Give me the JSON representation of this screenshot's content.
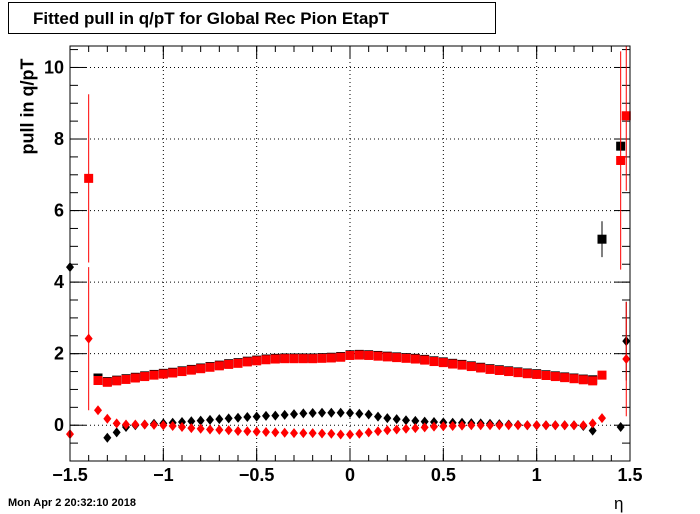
{
  "chart_data": {
    "type": "scatter",
    "title": "Fitted pull in q/pT for Global Rec Pion EtapT",
    "xlabel": "η",
    "ylabel": "pull in q/pT",
    "xlim": [
      -1.5,
      1.5
    ],
    "ylim": [
      -1,
      10.6
    ],
    "grid": true,
    "x_ticks": [
      "−1.5",
      "−1",
      "−0.5",
      "0",
      "0.5",
      "1",
      "1.5"
    ],
    "x_tick_values": [
      -1.5,
      -1,
      -0.5,
      0,
      0.5,
      1,
      1.5
    ],
    "y_ticks": [
      "0",
      "2",
      "4",
      "6",
      "8",
      "10"
    ],
    "y_tick_values": [
      0,
      2,
      4,
      6,
      8,
      10
    ],
    "series": [
      {
        "marker": "square",
        "color": "#000000",
        "x": [
          -1.35,
          -1.3,
          -1.25,
          -1.2,
          -1.15,
          -1.1,
          -1.05,
          -1.0,
          -0.95,
          -0.9,
          -0.85,
          -0.8,
          -0.75,
          -0.7,
          -0.65,
          -0.6,
          -0.55,
          -0.5,
          -0.45,
          -0.4,
          -0.35,
          -0.3,
          -0.25,
          -0.2,
          -0.15,
          -0.1,
          -0.05,
          0.0,
          0.05,
          0.1,
          0.15,
          0.2,
          0.25,
          0.3,
          0.35,
          0.4,
          0.45,
          0.5,
          0.55,
          0.6,
          0.65,
          0.7,
          0.75,
          0.8,
          0.85,
          0.9,
          0.95,
          1.0,
          1.05,
          1.1,
          1.15,
          1.2,
          1.25,
          1.3,
          1.35,
          1.45
        ],
        "y": [
          1.32,
          1.22,
          1.26,
          1.3,
          1.34,
          1.38,
          1.42,
          1.45,
          1.48,
          1.52,
          1.56,
          1.6,
          1.64,
          1.68,
          1.72,
          1.75,
          1.79,
          1.82,
          1.85,
          1.87,
          1.88,
          1.88,
          1.88,
          1.88,
          1.89,
          1.9,
          1.92,
          1.97,
          1.98,
          1.97,
          1.95,
          1.93,
          1.91,
          1.89,
          1.87,
          1.84,
          1.8,
          1.77,
          1.73,
          1.7,
          1.66,
          1.62,
          1.58,
          1.55,
          1.52,
          1.49,
          1.46,
          1.44,
          1.41,
          1.38,
          1.35,
          1.32,
          1.29,
          1.27,
          5.2,
          7.8
        ],
        "err": [
          0,
          0,
          0,
          0,
          0,
          0,
          0,
          0,
          0,
          0,
          0,
          0,
          0,
          0,
          0,
          0,
          0,
          0,
          0,
          0,
          0,
          0,
          0,
          0,
          0,
          0,
          0,
          0,
          0,
          0,
          0,
          0,
          0,
          0,
          0,
          0,
          0,
          0,
          0,
          0,
          0,
          0,
          0,
          0,
          0,
          0,
          0,
          0,
          0,
          0,
          0,
          0,
          0,
          0,
          0.5,
          0
        ]
      },
      {
        "marker": "square",
        "color": "#ff0000",
        "x": [
          -1.4,
          -1.35,
          -1.3,
          -1.25,
          -1.2,
          -1.15,
          -1.1,
          -1.05,
          -1.0,
          -0.95,
          -0.9,
          -0.85,
          -0.8,
          -0.75,
          -0.7,
          -0.65,
          -0.6,
          -0.55,
          -0.5,
          -0.45,
          -0.4,
          -0.35,
          -0.3,
          -0.25,
          -0.2,
          -0.15,
          -0.1,
          -0.05,
          0.0,
          0.05,
          0.1,
          0.15,
          0.2,
          0.25,
          0.3,
          0.35,
          0.4,
          0.45,
          0.5,
          0.55,
          0.6,
          0.65,
          0.7,
          0.75,
          0.8,
          0.85,
          0.9,
          0.95,
          1.0,
          1.05,
          1.1,
          1.15,
          1.2,
          1.25,
          1.3,
          1.35,
          1.45,
          1.48
        ],
        "y": [
          6.9,
          1.25,
          1.2,
          1.24,
          1.28,
          1.32,
          1.36,
          1.4,
          1.43,
          1.46,
          1.5,
          1.54,
          1.58,
          1.62,
          1.66,
          1.7,
          1.73,
          1.77,
          1.8,
          1.83,
          1.85,
          1.86,
          1.86,
          1.86,
          1.86,
          1.87,
          1.88,
          1.9,
          1.95,
          1.96,
          1.95,
          1.93,
          1.91,
          1.89,
          1.87,
          1.85,
          1.82,
          1.78,
          1.75,
          1.71,
          1.68,
          1.64,
          1.6,
          1.56,
          1.53,
          1.5,
          1.47,
          1.44,
          1.42,
          1.39,
          1.36,
          1.33,
          1.3,
          1.27,
          1.24,
          1.4,
          7.4,
          8.65
        ],
        "err": [
          2.35,
          0,
          0,
          0,
          0,
          0,
          0,
          0,
          0,
          0,
          0,
          0,
          0,
          0,
          0,
          0,
          0,
          0,
          0,
          0,
          0,
          0,
          0,
          0,
          0,
          0,
          0,
          0,
          0,
          0,
          0,
          0,
          0,
          0,
          0,
          0,
          0,
          0,
          0,
          0,
          0,
          0,
          0,
          0,
          0,
          0,
          0,
          0,
          0,
          0,
          0,
          0,
          0,
          0,
          0,
          0,
          3.05,
          2.1
        ]
      },
      {
        "marker": "diamond",
        "color": "#000000",
        "x": [
          -1.5,
          -1.3,
          -1.25,
          -1.2,
          -1.15,
          -1.1,
          -1.05,
          -1.0,
          -0.95,
          -0.9,
          -0.85,
          -0.8,
          -0.75,
          -0.7,
          -0.65,
          -0.6,
          -0.55,
          -0.5,
          -0.45,
          -0.4,
          -0.35,
          -0.3,
          -0.25,
          -0.2,
          -0.15,
          -0.1,
          -0.05,
          0.0,
          0.05,
          0.1,
          0.15,
          0.2,
          0.25,
          0.3,
          0.35,
          0.4,
          0.45,
          0.5,
          0.55,
          0.6,
          0.65,
          0.7,
          0.75,
          0.8,
          0.85,
          0.9,
          0.95,
          1.0,
          1.05,
          1.1,
          1.15,
          1.2,
          1.25,
          1.3,
          1.45,
          1.48
        ],
        "y": [
          4.42,
          -0.35,
          -0.2,
          -0.05,
          0.0,
          0.02,
          0.04,
          0.05,
          0.07,
          0.09,
          0.11,
          0.13,
          0.15,
          0.17,
          0.19,
          0.21,
          0.23,
          0.24,
          0.26,
          0.27,
          0.29,
          0.31,
          0.33,
          0.34,
          0.35,
          0.35,
          0.35,
          0.34,
          0.32,
          0.3,
          0.24,
          0.2,
          0.17,
          0.14,
          0.12,
          0.1,
          0.09,
          0.08,
          0.07,
          0.07,
          0.06,
          0.05,
          0.04,
          0.03,
          0.02,
          0.01,
          0.0,
          0.0,
          0.0,
          0.0,
          0.0,
          0.0,
          -0.02,
          -0.15,
          -0.05,
          2.35
        ],
        "err": [
          4.0,
          0,
          0,
          0,
          0,
          0,
          0,
          0,
          0,
          0,
          0,
          0,
          0,
          0,
          0,
          0,
          0,
          0,
          0,
          0,
          0,
          0,
          0,
          0,
          0,
          0,
          0,
          0,
          0,
          0,
          0,
          0,
          0,
          0,
          0,
          0,
          0,
          0,
          0,
          0,
          0,
          0,
          0,
          0,
          0,
          0,
          0,
          0,
          0,
          0,
          0,
          0,
          0,
          0,
          0,
          1.1
        ]
      },
      {
        "marker": "diamond",
        "color": "#ff0000",
        "x": [
          -1.5,
          -1.4,
          -1.35,
          -1.3,
          -1.25,
          -1.2,
          -1.15,
          -1.1,
          -1.05,
          -1.0,
          -0.95,
          -0.9,
          -0.85,
          -0.8,
          -0.75,
          -0.7,
          -0.65,
          -0.6,
          -0.55,
          -0.5,
          -0.45,
          -0.4,
          -0.35,
          -0.3,
          -0.25,
          -0.2,
          -0.15,
          -0.1,
          -0.05,
          0.0,
          0.05,
          0.1,
          0.15,
          0.2,
          0.25,
          0.3,
          0.35,
          0.4,
          0.45,
          0.5,
          0.55,
          0.6,
          0.65,
          0.7,
          0.75,
          0.8,
          0.85,
          0.9,
          0.95,
          1.0,
          1.05,
          1.1,
          1.15,
          1.2,
          1.25,
          1.3,
          1.35,
          1.48
        ],
        "y": [
          -0.25,
          2.42,
          0.42,
          0.18,
          0.05,
          0.02,
          0.02,
          0.02,
          0.01,
          0.0,
          -0.02,
          -0.05,
          -0.08,
          -0.1,
          -0.12,
          -0.13,
          -0.14,
          -0.16,
          -0.17,
          -0.18,
          -0.19,
          -0.2,
          -0.21,
          -0.22,
          -0.22,
          -0.22,
          -0.23,
          -0.24,
          -0.26,
          -0.26,
          -0.24,
          -0.2,
          -0.17,
          -0.14,
          -0.12,
          -0.1,
          -0.08,
          -0.06,
          -0.04,
          -0.03,
          -0.02,
          -0.01,
          0.0,
          0.0,
          0.0,
          0.0,
          0.0,
          0.0,
          0.0,
          0.0,
          0.0,
          0.0,
          0.0,
          0.0,
          0.0,
          0.05,
          0.2,
          1.85
        ],
        "err": [
          0.5,
          2.0,
          0,
          0,
          0,
          0,
          0,
          0,
          0,
          0,
          0,
          0,
          0,
          0,
          0,
          0,
          0,
          0,
          0,
          0,
          0,
          0,
          0,
          0,
          0,
          0,
          0,
          0,
          0,
          0,
          0,
          0,
          0,
          0,
          0,
          0,
          0,
          0,
          0,
          0,
          0,
          0,
          0,
          0,
          0,
          0,
          0,
          0,
          0,
          0,
          0,
          0,
          0,
          0,
          0,
          0,
          0,
          1.6
        ]
      }
    ]
  },
  "timestamp": "Mon Apr  2 20:32:10 2018"
}
